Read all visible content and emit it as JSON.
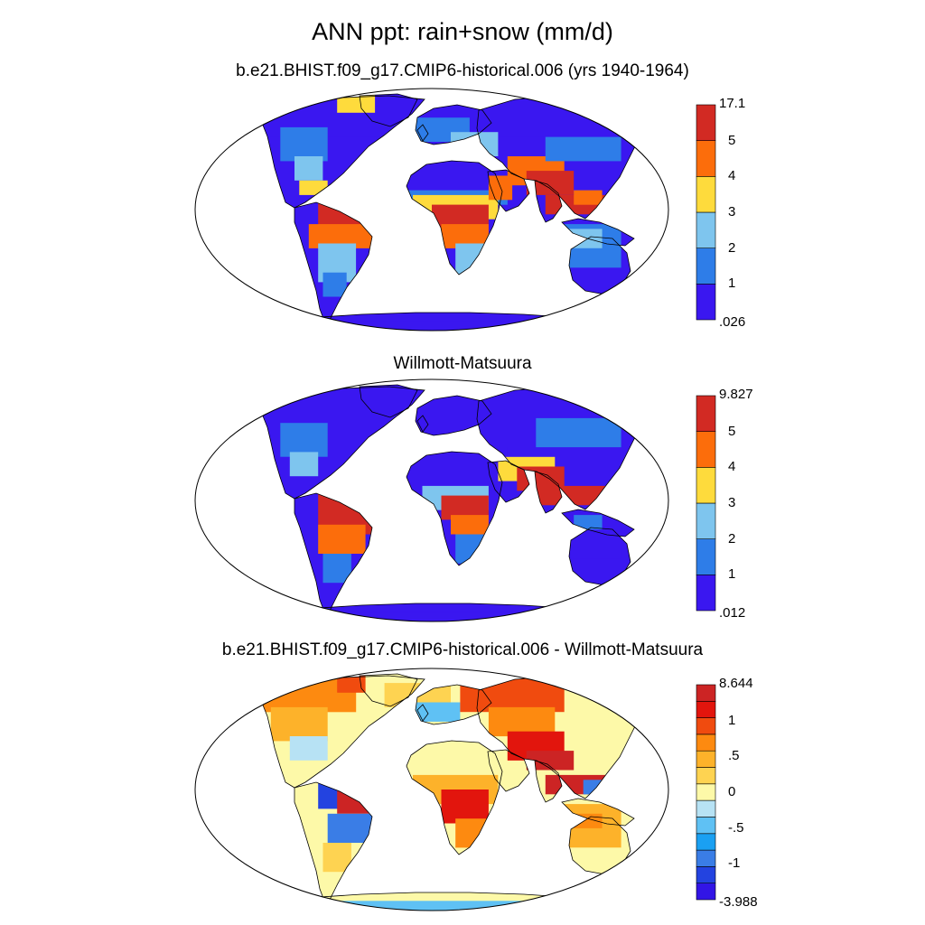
{
  "title": "ANN ppt: rain+snow (mm/d)",
  "panels": [
    {
      "subtitle": "b.e21.BHIST.f09_g17.CMIP6-historical.006 (yrs 1940-1964)",
      "colorbar": {
        "colors": [
          "#3a17f0",
          "#2e7de8",
          "#7ec5ee",
          "#fedb3c",
          "#fc6d0b",
          "#d22a23"
        ],
        "labels": [
          "17.1",
          "5",
          "4",
          "3",
          "2",
          "1",
          ".026"
        ]
      }
    },
    {
      "subtitle": "Willmott-Matsuura",
      "colorbar": {
        "colors": [
          "#3a17f0",
          "#2e7de8",
          "#7ec5ee",
          "#fedb3c",
          "#fc6d0b",
          "#d22a23"
        ],
        "labels": [
          "9.827",
          "5",
          "4",
          "3",
          "2",
          "1",
          ".012"
        ]
      }
    },
    {
      "subtitle": "b.e21.BHIST.f09_g17.CMIP6-historical.006 - Willmott-Matsuura",
      "colorbar": {
        "colors": [
          "#3215e6",
          "#2343e0",
          "#3a7de6",
          "#1aa0f2",
          "#5fc1f4",
          "#b7e2f4",
          "#fdf9a8",
          "#fed351",
          "#fdb22a",
          "#fd8a10",
          "#f04b0f",
          "#e2150d",
          "#cc2424"
        ],
        "labels": [
          "8.644",
          "1",
          ".5",
          "0",
          "-.5",
          "-1",
          "-3.988"
        ]
      }
    }
  ]
}
